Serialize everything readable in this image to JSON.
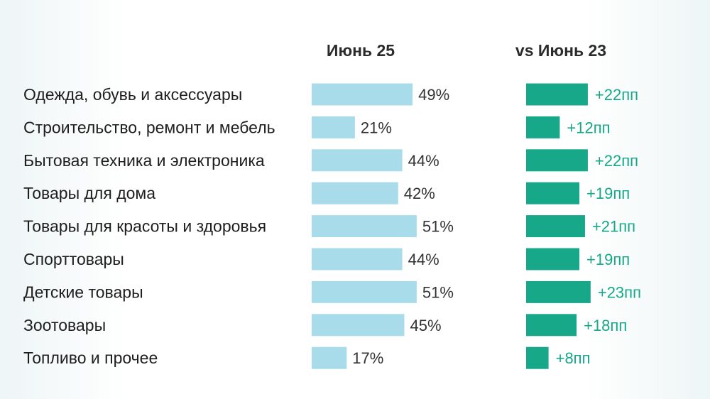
{
  "chart_data": {
    "type": "bar",
    "categories": [
      "Одежда, обувь и аксессуары",
      "Строительство, ремонт и мебель",
      "Бытовая техника и электроника",
      "Товары для дома",
      "Товары для красоты и здоровья",
      "Спорттовары",
      "Детские товары",
      "Зоотовары",
      "Топливо и прочее"
    ],
    "series": [
      {
        "name": "Июнь 25",
        "values": [
          49,
          21,
          44,
          42,
          51,
          44,
          51,
          45,
          17
        ],
        "labels": [
          "49%",
          "21%",
          "44%",
          "42%",
          "51%",
          "44%",
          "51%",
          "45%",
          "17%"
        ],
        "color": "#a9dcea"
      },
      {
        "name": "vs Июнь 23",
        "values": [
          22,
          12,
          22,
          19,
          21,
          19,
          23,
          18,
          8
        ],
        "labels": [
          "+22пп",
          "+12пп",
          "+22пп",
          "+19пп",
          "+21пп",
          "+19пп",
          "+23пп",
          "+18пп",
          "+8пп"
        ],
        "color": "#17a88a"
      }
    ],
    "grid": false,
    "legend": "none"
  }
}
